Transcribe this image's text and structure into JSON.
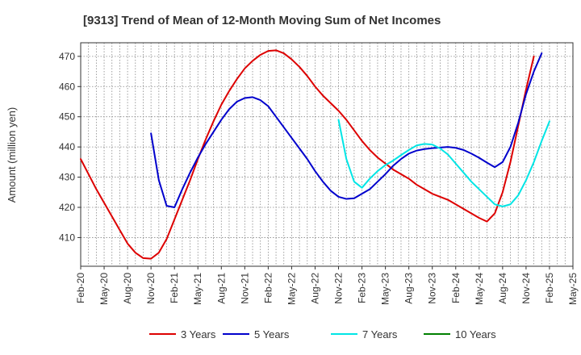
{
  "chart_data": {
    "type": "line",
    "title": "[9313]  Trend of Mean of 12-Month Moving Sum of Net Incomes",
    "xlabel": "",
    "ylabel": "Amount (million yen)",
    "ylim": [
      400.5,
      474.5
    ],
    "yticks": [
      410,
      420,
      430,
      440,
      450,
      460,
      470
    ],
    "xticks": [
      "Feb-20",
      "May-20",
      "Aug-20",
      "Nov-20",
      "Feb-21",
      "May-21",
      "Aug-21",
      "Nov-21",
      "Feb-22",
      "May-22",
      "Aug-22",
      "Nov-22",
      "Feb-23",
      "May-23",
      "Aug-23",
      "Nov-23",
      "Feb-24",
      "May-24",
      "Aug-24",
      "Nov-24",
      "Feb-25",
      "May-25"
    ],
    "grid": true,
    "legend_position": "bottom",
    "series": [
      {
        "name": "3 Years",
        "color": "#dd0000",
        "start_month": 0,
        "values": [
          436,
          431,
          426,
          421.5,
          417,
          412.5,
          408,
          405,
          403.2,
          403,
          405,
          409.5,
          416,
          422.5,
          429,
          436,
          442.5,
          448.5,
          454,
          458.5,
          462.5,
          466,
          468.5,
          470.5,
          471.8,
          472,
          471,
          469,
          466.5,
          463.5,
          460,
          457,
          454.5,
          452,
          449,
          445.5,
          442,
          439,
          436.5,
          434.5,
          432.5,
          431,
          429.5,
          427.5,
          426,
          424.5,
          423.5,
          422.5,
          421,
          419.5,
          418,
          416.5,
          415.3,
          418,
          425,
          435,
          447,
          459,
          470
        ]
      },
      {
        "name": "5 Years",
        "color": "#0000cc",
        "start_month": 9,
        "values": [
          444.5,
          429,
          420.5,
          420,
          426,
          431.5,
          436.5,
          441,
          445,
          449,
          452.5,
          455,
          456.2,
          456.5,
          455.5,
          453.5,
          450,
          446.5,
          443,
          439.5,
          436,
          432,
          428.5,
          425.5,
          423.5,
          422.8,
          423,
          424.5,
          426,
          428.5,
          431,
          433.8,
          436,
          437.8,
          438.8,
          439.3,
          439.6,
          439.8,
          440,
          439.7,
          439,
          437.8,
          436.4,
          434.8,
          433.3,
          435,
          440,
          448,
          457.5,
          465,
          471
        ]
      },
      {
        "name": "7 Years",
        "color": "#00e5e5",
        "start_month": 33,
        "values": [
          449,
          436,
          428.5,
          426.5,
          429.5,
          432,
          434,
          435.5,
          437.3,
          439,
          440.5,
          441,
          440.8,
          439.5,
          437.5,
          434.5,
          431.5,
          428.5,
          426,
          423.5,
          421,
          420.3,
          421,
          424,
          429,
          435,
          442,
          448.5
        ]
      },
      {
        "name": "10 Years",
        "color": "#008000",
        "start_month": 0,
        "values": []
      }
    ]
  }
}
